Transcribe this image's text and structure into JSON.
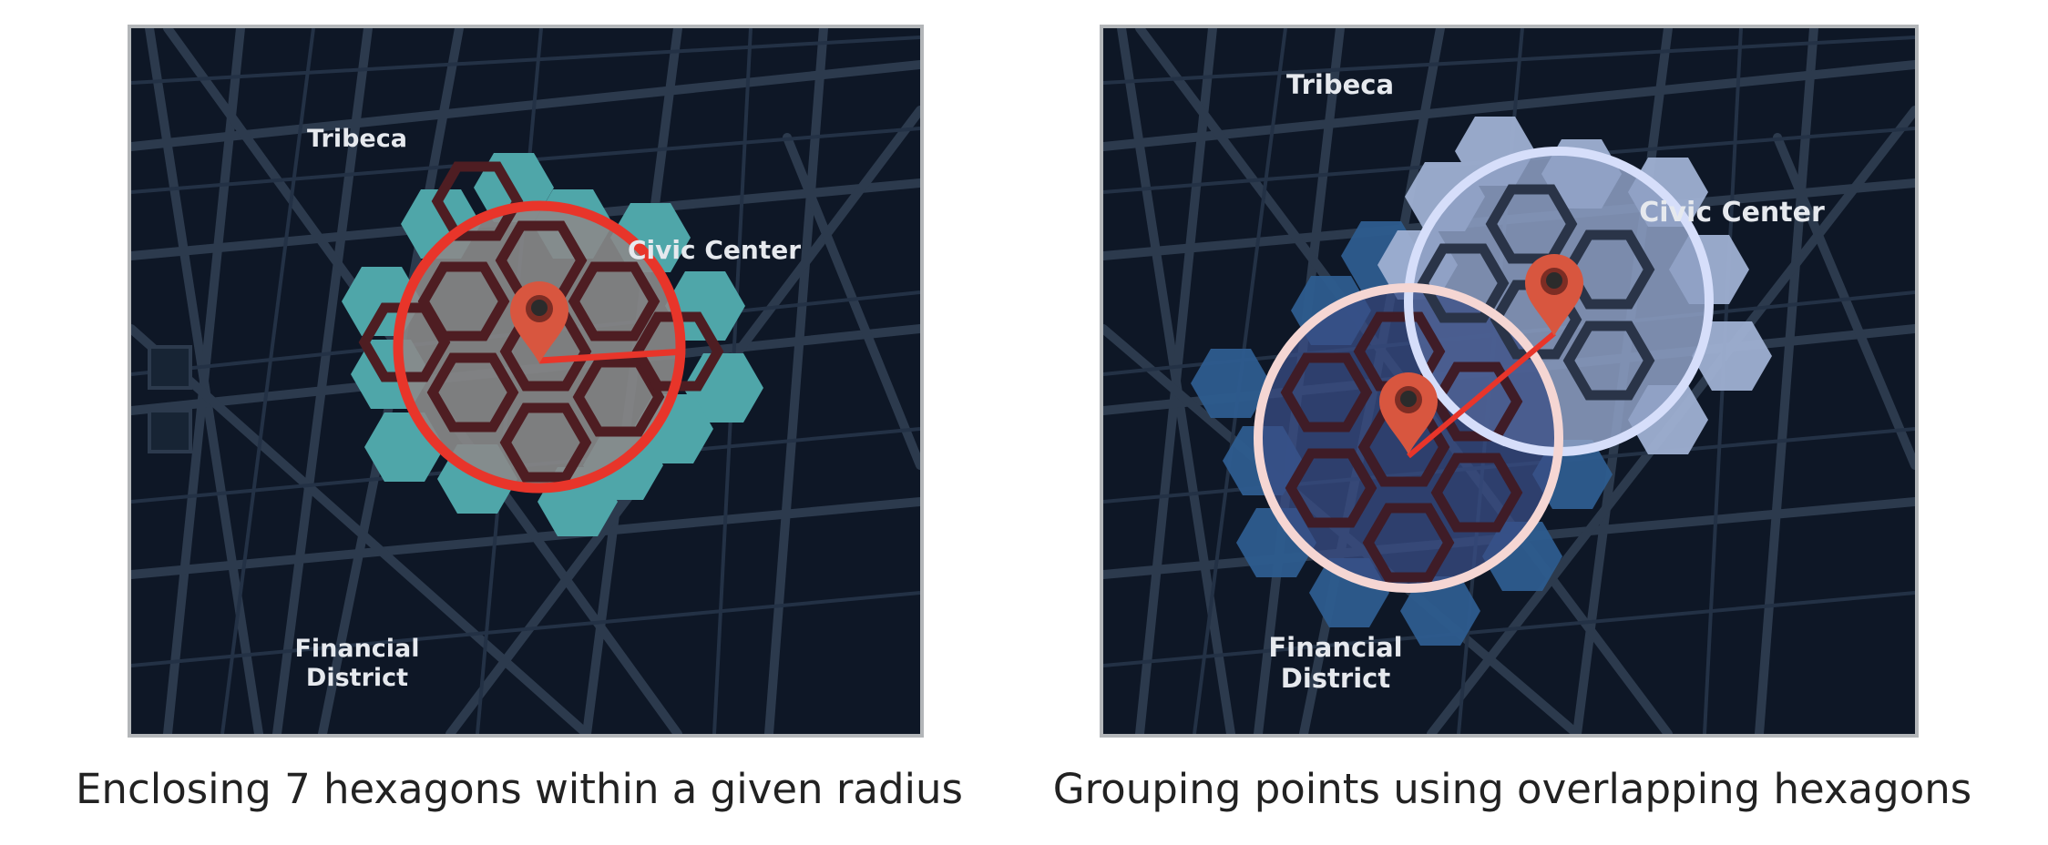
{
  "left_panel": {
    "labels": {
      "tribeca": "Tribeca",
      "civic_center": "Civic Center",
      "financial_line1": "Financial",
      "financial_line2": "District"
    },
    "caption": "Enclosing 7 hexagons within a given radius",
    "colors": {
      "hex_fill": "#4fa6a9",
      "circle": "#e8352a",
      "marker": "#d8563f"
    }
  },
  "right_panel": {
    "labels": {
      "tribeca": "Tribeca",
      "civic_center": "Civic Center",
      "financial_line1": "Financial",
      "financial_line2": "District"
    },
    "caption": "Grouping points using overlapping hexagons",
    "colors": {
      "hex_light": "#9fb0d2",
      "hex_dark": "#2e5c8f",
      "circle_light": "#d6defa",
      "circle_pink": "#f5d6d3",
      "marker": "#d8563f"
    }
  },
  "icons": [
    "map-pin-icon"
  ]
}
